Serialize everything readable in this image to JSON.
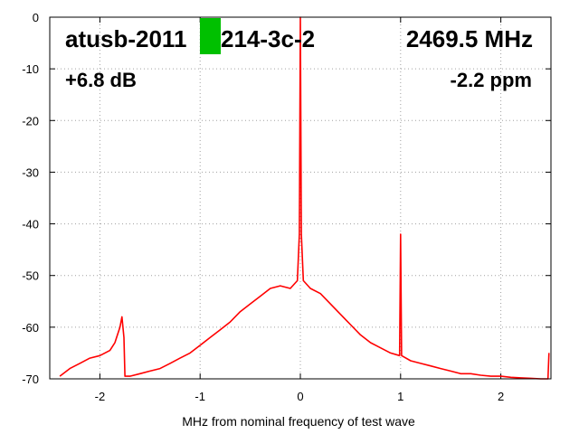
{
  "chart_data": {
    "type": "line",
    "title": "",
    "xlabel": "MHz from nominal frequency of test wave",
    "ylabel": "",
    "xlim": [
      -2.5,
      2.5
    ],
    "ylim": [
      -70,
      0
    ],
    "xticks": [
      -2,
      -1,
      0,
      1,
      2
    ],
    "yticks": [
      0,
      -10,
      -20,
      -30,
      -40,
      -50,
      -60,
      -70
    ],
    "grid": true,
    "legend": "none",
    "colors": {
      "trace": "#ff0000",
      "marker": "#00c000"
    },
    "annotations": {
      "device": "atusb-2011",
      "device_suffix": "214-3c-2",
      "frequency": "2469.5 MHz",
      "gain": "+6.8 dB",
      "offset": "-2.2 ppm"
    },
    "series": [
      {
        "x": [
          -2.4,
          -2.3,
          -2.2,
          -2.1,
          -2.0,
          -1.9,
          -1.85,
          -1.8,
          -1.78,
          -1.76,
          -1.75,
          -1.7,
          -1.6,
          -1.5,
          -1.4,
          -1.3,
          -1.2,
          -1.1,
          -1.0,
          -0.9,
          -0.8,
          -0.7,
          -0.6,
          -0.5,
          -0.4,
          -0.3,
          -0.2,
          -0.1,
          -0.03,
          -0.01,
          0.0,
          0.01,
          0.03,
          0.1,
          0.2,
          0.3,
          0.4,
          0.5,
          0.6,
          0.7,
          0.8,
          0.9,
          0.99,
          1.0,
          1.01,
          1.1,
          1.2,
          1.3,
          1.4,
          1.5,
          1.6,
          1.7,
          1.8,
          1.9,
          2.0,
          2.1,
          2.2,
          2.3,
          2.4,
          2.47,
          2.48
        ],
        "y": [
          -69.5,
          -68,
          -67,
          -66,
          -65.5,
          -64.5,
          -63,
          -60,
          -58,
          -62,
          -69.5,
          -69.5,
          -69,
          -68.5,
          -68,
          -67,
          -66,
          -65,
          -63.5,
          -62,
          -60.5,
          -59,
          -57,
          -55.5,
          -54,
          -52.5,
          -52,
          -52.5,
          -51,
          -42,
          0,
          -42,
          -51,
          -52.5,
          -53.5,
          -55.5,
          -57.5,
          -59.5,
          -61.5,
          -63,
          -64,
          -65,
          -65.5,
          -42,
          -65.5,
          -66.5,
          -67,
          -67.5,
          -68,
          -68.5,
          -69,
          -69,
          -69.3,
          -69.5,
          -69.5,
          -69.7,
          -69.8,
          -69.9,
          -70,
          -70,
          -65
        ]
      }
    ]
  }
}
